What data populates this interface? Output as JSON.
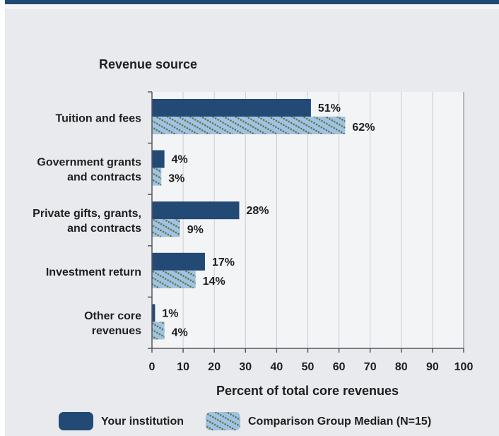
{
  "chart_data": {
    "type": "bar",
    "orientation": "horizontal",
    "title": "Revenue source",
    "xlabel": "Percent of total core revenues",
    "xlim": [
      0,
      100
    ],
    "xticks": [
      0,
      10,
      20,
      30,
      40,
      50,
      60,
      70,
      80,
      90,
      100
    ],
    "grid": true,
    "legend_position": "bottom",
    "categories": [
      [
        "Tuition and fees"
      ],
      [
        "Government grants",
        "and contracts"
      ],
      [
        "Private gifts, grants,",
        "and contracts"
      ],
      [
        "Investment return"
      ],
      [
        "Other core",
        "revenues"
      ]
    ],
    "series": [
      {
        "name": "Your institution",
        "values": [
          51,
          4,
          28,
          17,
          1
        ],
        "labels": [
          "51%",
          "4%",
          "28%",
          "17%",
          "1%"
        ],
        "color": "#234a74"
      },
      {
        "name": "Comparison Group Median (N=15)",
        "values": [
          62,
          3,
          9,
          14,
          4
        ],
        "labels": [
          "62%",
          "3%",
          "9%",
          "14%",
          "4%"
        ],
        "color": "#a3c1e4",
        "pattern_color": "#4f7a3c"
      }
    ]
  }
}
